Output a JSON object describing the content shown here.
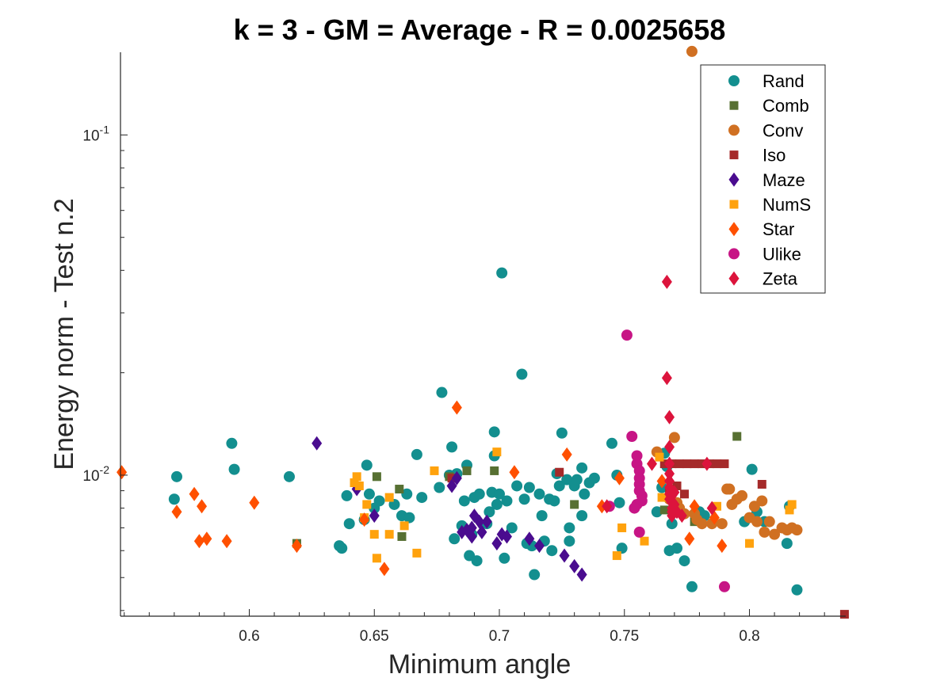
{
  "chart_data": {
    "type": "scatter",
    "title": "k = 3 - GM = Average - R = 0.0025658",
    "xlabel": "Minimum angle",
    "ylabel": "Energy norm - Test n.2",
    "xlim": [
      0.5485,
      0.8385
    ],
    "ylim": [
      0.00385,
      0.175
    ],
    "yscale": "log",
    "xticks": [
      0.6,
      0.65,
      0.7,
      0.75,
      0.8
    ],
    "xtick_labels": [
      "0.6",
      "0.65",
      "0.7",
      "0.75",
      "0.8"
    ],
    "ytick_labels": [
      {
        "value": 0.01,
        "base": "10",
        "exp": "-2"
      },
      {
        "value": 0.1,
        "base": "10",
        "exp": "-1"
      }
    ],
    "legend_position": "top-right",
    "series": [
      {
        "name": "Rand",
        "marker": "circle",
        "color": "#138f8f",
        "points": [
          [
            0.571,
            0.0099
          ],
          [
            0.57,
            0.0085
          ],
          [
            0.593,
            0.0124
          ],
          [
            0.594,
            0.0104
          ],
          [
            0.616,
            0.0099
          ],
          [
            0.636,
            0.0062
          ],
          [
            0.637,
            0.0061
          ],
          [
            0.64,
            0.0072
          ],
          [
            0.639,
            0.0087
          ],
          [
            0.646,
            0.0074
          ],
          [
            0.647,
            0.0107
          ],
          [
            0.65,
            0.008
          ],
          [
            0.648,
            0.0088
          ],
          [
            0.652,
            0.0084
          ],
          [
            0.658,
            0.0082
          ],
          [
            0.661,
            0.0076
          ],
          [
            0.663,
            0.0088
          ],
          [
            0.664,
            0.0075
          ],
          [
            0.667,
            0.0115
          ],
          [
            0.669,
            0.0086
          ],
          [
            0.676,
            0.0092
          ],
          [
            0.677,
            0.0175
          ],
          [
            0.681,
            0.0121
          ],
          [
            0.68,
            0.01
          ],
          [
            0.682,
            0.0065
          ],
          [
            0.683,
            0.0101
          ],
          [
            0.685,
            0.0071
          ],
          [
            0.686,
            0.0084
          ],
          [
            0.687,
            0.0107
          ],
          [
            0.688,
            0.0058
          ],
          [
            0.689,
            0.0067
          ],
          [
            0.69,
            0.0086
          ],
          [
            0.691,
            0.0056
          ],
          [
            0.692,
            0.0088
          ],
          [
            0.695,
            0.0072
          ],
          [
            0.696,
            0.0078
          ],
          [
            0.697,
            0.0089
          ],
          [
            0.698,
            0.0134
          ],
          [
            0.698,
            0.0114
          ],
          [
            0.699,
            0.0082
          ],
          [
            0.7,
            0.0088
          ],
          [
            0.701,
            0.0393
          ],
          [
            0.702,
            0.0057
          ],
          [
            0.703,
            0.0084
          ],
          [
            0.705,
            0.007
          ],
          [
            0.707,
            0.0093
          ],
          [
            0.709,
            0.0198
          ],
          [
            0.71,
            0.0085
          ],
          [
            0.711,
            0.0063
          ],
          [
            0.712,
            0.0092
          ],
          [
            0.713,
            0.0062
          ],
          [
            0.714,
            0.0051
          ],
          [
            0.716,
            0.0088
          ],
          [
            0.717,
            0.0076
          ],
          [
            0.718,
            0.0064
          ],
          [
            0.72,
            0.0085
          ],
          [
            0.721,
            0.006
          ],
          [
            0.722,
            0.0084
          ],
          [
            0.723,
            0.0101
          ],
          [
            0.724,
            0.0093
          ],
          [
            0.725,
            0.0133
          ],
          [
            0.727,
            0.0097
          ],
          [
            0.728,
            0.007
          ],
          [
            0.728,
            0.0064
          ],
          [
            0.73,
            0.0093
          ],
          [
            0.731,
            0.0097
          ],
          [
            0.733,
            0.0105
          ],
          [
            0.733,
            0.0076
          ],
          [
            0.734,
            0.0088
          ],
          [
            0.736,
            0.0095
          ],
          [
            0.738,
            0.0098
          ],
          [
            0.745,
            0.0124
          ],
          [
            0.747,
            0.01
          ],
          [
            0.748,
            0.0083
          ],
          [
            0.749,
            0.0061
          ],
          [
            0.763,
            0.0078
          ],
          [
            0.765,
            0.0092
          ],
          [
            0.766,
            0.0116
          ],
          [
            0.767,
            0.0106
          ],
          [
            0.768,
            0.006
          ],
          [
            0.769,
            0.0072
          ],
          [
            0.771,
            0.0061
          ],
          [
            0.774,
            0.0056
          ],
          [
            0.777,
            0.0047
          ],
          [
            0.779,
            0.0077
          ],
          [
            0.78,
            0.0078
          ],
          [
            0.782,
            0.0076
          ],
          [
            0.798,
            0.0073
          ],
          [
            0.801,
            0.0104
          ],
          [
            0.803,
            0.0078
          ],
          [
            0.806,
            0.0073
          ],
          [
            0.815,
            0.0063
          ],
          [
            0.816,
            0.0081
          ],
          [
            0.819,
            0.0046
          ]
        ]
      },
      {
        "name": "Comb",
        "marker": "square",
        "color": "#577032",
        "points": [
          [
            0.619,
            0.0063
          ],
          [
            0.651,
            0.0099
          ],
          [
            0.66,
            0.0091
          ],
          [
            0.661,
            0.0066
          ],
          [
            0.68,
            0.0099
          ],
          [
            0.687,
            0.0103
          ],
          [
            0.698,
            0.0103
          ],
          [
            0.73,
            0.0082
          ],
          [
            0.795,
            0.013
          ],
          [
            0.766,
            0.0079
          ],
          [
            0.778,
            0.0073
          ]
        ]
      },
      {
        "name": "Conv",
        "marker": "circle",
        "color": "#d07022",
        "points": [
          [
            0.777,
            0.176
          ],
          [
            0.763,
            0.0117
          ],
          [
            0.77,
            0.0129
          ],
          [
            0.771,
            0.0083
          ],
          [
            0.778,
            0.0077
          ],
          [
            0.779,
            0.0074
          ],
          [
            0.781,
            0.0072
          ],
          [
            0.785,
            0.0072
          ],
          [
            0.789,
            0.0072
          ],
          [
            0.791,
            0.0091
          ],
          [
            0.793,
            0.0082
          ],
          [
            0.795,
            0.0085
          ],
          [
            0.797,
            0.0087
          ],
          [
            0.8,
            0.0075
          ],
          [
            0.802,
            0.0081
          ],
          [
            0.803,
            0.0073
          ],
          [
            0.805,
            0.0084
          ],
          [
            0.806,
            0.0068
          ],
          [
            0.808,
            0.0073
          ],
          [
            0.81,
            0.0067
          ],
          [
            0.813,
            0.007
          ],
          [
            0.815,
            0.0069
          ],
          [
            0.817,
            0.007
          ],
          [
            0.819,
            0.0069
          ],
          [
            0.768,
            0.0085
          ],
          [
            0.772,
            0.008
          ],
          [
            0.774,
            0.0077
          ],
          [
            0.792,
            0.0091
          ]
        ]
      },
      {
        "name": "Iso",
        "marker": "square",
        "color": "#a52a2a",
        "points": [
          [
            0.724,
            0.0102
          ],
          [
            0.681,
            0.0098
          ],
          [
            0.766,
            0.0108
          ],
          [
            0.769,
            0.0108
          ],
          [
            0.772,
            0.0108
          ],
          [
            0.775,
            0.0108
          ],
          [
            0.778,
            0.0108
          ],
          [
            0.781,
            0.0108
          ],
          [
            0.784,
            0.0108
          ],
          [
            0.787,
            0.0108
          ],
          [
            0.79,
            0.0108
          ],
          [
            0.768,
            0.009
          ],
          [
            0.771,
            0.0093
          ],
          [
            0.774,
            0.0088
          ],
          [
            0.805,
            0.0094
          ],
          [
            0.838,
            0.0039
          ]
        ]
      },
      {
        "name": "Maze",
        "marker": "diamond",
        "color": "#4a0c8f",
        "points": [
          [
            0.627,
            0.0124
          ],
          [
            0.643,
            0.0091
          ],
          [
            0.65,
            0.0076
          ],
          [
            0.681,
            0.0093
          ],
          [
            0.683,
            0.0098
          ],
          [
            0.687,
            0.0069
          ],
          [
            0.689,
            0.007
          ],
          [
            0.69,
            0.0076
          ],
          [
            0.692,
            0.0073
          ],
          [
            0.693,
            0.0068
          ],
          [
            0.695,
            0.0073
          ],
          [
            0.699,
            0.0063
          ],
          [
            0.701,
            0.0067
          ],
          [
            0.703,
            0.0066
          ],
          [
            0.712,
            0.0065
          ],
          [
            0.716,
            0.0062
          ],
          [
            0.726,
            0.0058
          ],
          [
            0.73,
            0.0054
          ],
          [
            0.733,
            0.0051
          ],
          [
            0.689,
            0.0066
          ],
          [
            0.685,
            0.0068
          ]
        ]
      },
      {
        "name": "NumS",
        "marker": "square",
        "color": "#ffa20d",
        "points": [
          [
            0.642,
            0.0095
          ],
          [
            0.643,
            0.0099
          ],
          [
            0.644,
            0.0093
          ],
          [
            0.647,
            0.0082
          ],
          [
            0.646,
            0.0075
          ],
          [
            0.651,
            0.0057
          ],
          [
            0.65,
            0.0067
          ],
          [
            0.656,
            0.0086
          ],
          [
            0.656,
            0.0067
          ],
          [
            0.662,
            0.0071
          ],
          [
            0.667,
            0.0059
          ],
          [
            0.674,
            0.0103
          ],
          [
            0.699,
            0.0117
          ],
          [
            0.747,
            0.0058
          ],
          [
            0.749,
            0.007
          ],
          [
            0.758,
            0.0064
          ],
          [
            0.764,
            0.0113
          ],
          [
            0.765,
            0.0086
          ],
          [
            0.787,
            0.0081
          ],
          [
            0.8,
            0.0063
          ],
          [
            0.817,
            0.0082
          ],
          [
            0.816,
            0.0079
          ]
        ]
      },
      {
        "name": "Star",
        "marker": "diamond",
        "color": "#ff5000",
        "points": [
          [
            0.549,
            0.0102
          ],
          [
            0.571,
            0.0078
          ],
          [
            0.578,
            0.0088
          ],
          [
            0.58,
            0.0064
          ],
          [
            0.583,
            0.0065
          ],
          [
            0.581,
            0.0081
          ],
          [
            0.591,
            0.0064
          ],
          [
            0.602,
            0.0083
          ],
          [
            0.619,
            0.0062
          ],
          [
            0.646,
            0.0074
          ],
          [
            0.654,
            0.0053
          ],
          [
            0.683,
            0.0158
          ],
          [
            0.706,
            0.0102
          ],
          [
            0.727,
            0.0115
          ],
          [
            0.741,
            0.0081
          ],
          [
            0.748,
            0.0098
          ],
          [
            0.765,
            0.0096
          ],
          [
            0.776,
            0.0065
          ],
          [
            0.778,
            0.0081
          ],
          [
            0.786,
            0.0075
          ],
          [
            0.789,
            0.0062
          ]
        ]
      },
      {
        "name": "Ulike",
        "marker": "circle",
        "color": "#c71585",
        "points": [
          [
            0.751,
            0.0258
          ],
          [
            0.753,
            0.013
          ],
          [
            0.755,
            0.0114
          ],
          [
            0.755,
            0.0108
          ],
          [
            0.756,
            0.0103
          ],
          [
            0.756,
            0.0098
          ],
          [
            0.756,
            0.0094
          ],
          [
            0.756,
            0.009
          ],
          [
            0.757,
            0.0087
          ],
          [
            0.757,
            0.0084
          ],
          [
            0.755,
            0.0082
          ],
          [
            0.754,
            0.008
          ],
          [
            0.756,
            0.0068
          ],
          [
            0.79,
            0.0047
          ],
          [
            0.744,
            0.0081
          ]
        ]
      },
      {
        "name": "Zeta",
        "marker": "diamond",
        "color": "#dc143c",
        "points": [
          [
            0.767,
            0.037
          ],
          [
            0.767,
            0.0193
          ],
          [
            0.768,
            0.0148
          ],
          [
            0.768,
            0.0121
          ],
          [
            0.768,
            0.0108
          ],
          [
            0.768,
            0.0101
          ],
          [
            0.768,
            0.0096
          ],
          [
            0.768,
            0.0092
          ],
          [
            0.768,
            0.0088
          ],
          [
            0.768,
            0.0085
          ],
          [
            0.769,
            0.0083
          ],
          [
            0.769,
            0.008
          ],
          [
            0.769,
            0.0078
          ],
          [
            0.769,
            0.0076
          ],
          [
            0.77,
            0.0089
          ],
          [
            0.77,
            0.0082
          ],
          [
            0.771,
            0.0078
          ],
          [
            0.773,
            0.0076
          ],
          [
            0.761,
            0.0108
          ],
          [
            0.783,
            0.0108
          ],
          [
            0.743,
            0.0081
          ],
          [
            0.785,
            0.008
          ]
        ]
      }
    ]
  }
}
